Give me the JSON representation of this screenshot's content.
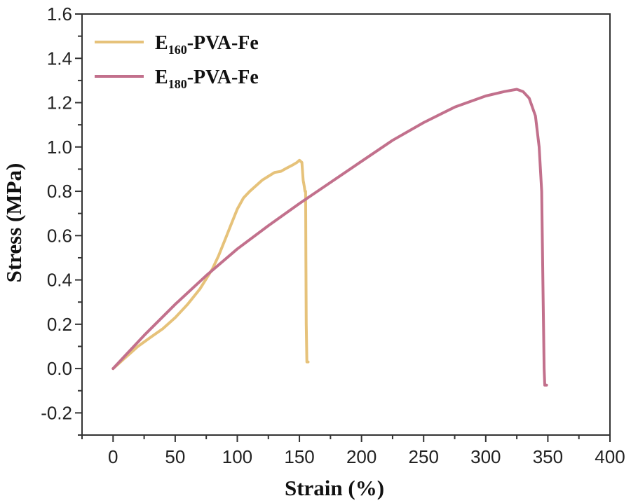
{
  "chart_data": {
    "type": "line",
    "xlabel": "Strain (%)",
    "ylabel": "Stress (MPa)",
    "xlim": [
      -25,
      400
    ],
    "ylim": [
      -0.3,
      1.6
    ],
    "xticks": [
      0,
      50,
      100,
      150,
      200,
      250,
      300,
      350,
      400
    ],
    "xtick_labels": [
      "0",
      "50",
      "100",
      "150",
      "200",
      "250",
      "300",
      "350",
      "400"
    ],
    "yticks": [
      -0.2,
      0.0,
      0.2,
      0.4,
      0.6,
      0.8,
      1.0,
      1.2,
      1.4,
      1.6
    ],
    "ytick_labels": [
      "-0.2",
      "0.0",
      "0.2",
      "0.4",
      "0.6",
      "0.8",
      "1.0",
      "1.2",
      "1.4",
      "1.6"
    ],
    "legend_placement": "top-left",
    "series": [
      {
        "name": "E160-PVA-Fe",
        "legend_main": "E",
        "legend_sub": "160",
        "legend_rest": "-PVA-Fe",
        "color": "#E6C27A",
        "x": [
          0,
          5,
          10,
          15,
          20,
          30,
          40,
          50,
          60,
          70,
          80,
          85,
          90,
          95,
          100,
          105,
          110,
          120,
          130,
          135,
          140,
          145,
          148,
          150,
          152,
          153,
          154,
          154.5,
          155,
          155.2,
          155.5,
          156,
          156.5,
          157
        ],
        "y": [
          0,
          0.025,
          0.05,
          0.075,
          0.1,
          0.14,
          0.18,
          0.23,
          0.29,
          0.36,
          0.45,
          0.51,
          0.58,
          0.65,
          0.72,
          0.77,
          0.8,
          0.85,
          0.885,
          0.89,
          0.905,
          0.92,
          0.93,
          0.94,
          0.93,
          0.85,
          0.82,
          0.8,
          0.8,
          0.5,
          0.2,
          0.03,
          0.03,
          0.03
        ]
      },
      {
        "name": "E180-PVA-Fe",
        "legend_main": "E",
        "legend_sub": "180",
        "legend_rest": "-PVA-Fe",
        "color": "#C2708C",
        "x": [
          0,
          10,
          25,
          50,
          75,
          100,
          125,
          150,
          175,
          200,
          225,
          250,
          275,
          300,
          315,
          325,
          330,
          335,
          340,
          343,
          345,
          346,
          347,
          347.5,
          348,
          348.5,
          349
        ],
        "y": [
          0,
          0.06,
          0.15,
          0.29,
          0.42,
          0.54,
          0.645,
          0.745,
          0.84,
          0.935,
          1.03,
          1.11,
          1.18,
          1.23,
          1.25,
          1.26,
          1.25,
          1.22,
          1.14,
          1.0,
          0.8,
          0.4,
          0.0,
          -0.075,
          -0.075,
          -0.075,
          -0.075
        ]
      }
    ]
  }
}
